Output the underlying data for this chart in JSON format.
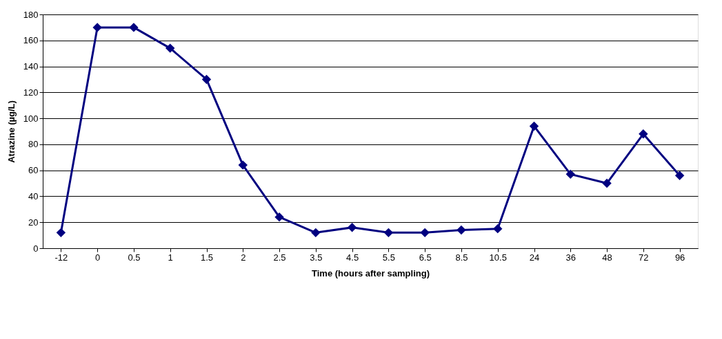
{
  "chart_data": {
    "type": "line",
    "xlabel": "Time (hours after sampling)",
    "ylabel": "Atrazine (µg/L)",
    "categories": [
      "-12",
      "0",
      "0.5",
      "1",
      "1.5",
      "2",
      "2.5",
      "3.5",
      "4.5",
      "5.5",
      "6.5",
      "8.5",
      "10.5",
      "24",
      "36",
      "48",
      "72",
      "96"
    ],
    "series": [
      {
        "color": "#000080",
        "values": [
          12,
          170,
          170,
          154,
          130,
          64,
          24,
          12,
          16,
          12,
          12,
          14,
          15,
          94,
          57,
          50,
          88,
          56
        ]
      }
    ],
    "ylim": [
      0,
      180
    ],
    "yticks": [
      0,
      20,
      40,
      60,
      80,
      100,
      120,
      140,
      160,
      180
    ],
    "grid": "y",
    "legend": false,
    "marker": "diamond",
    "line_style": "solid"
  }
}
